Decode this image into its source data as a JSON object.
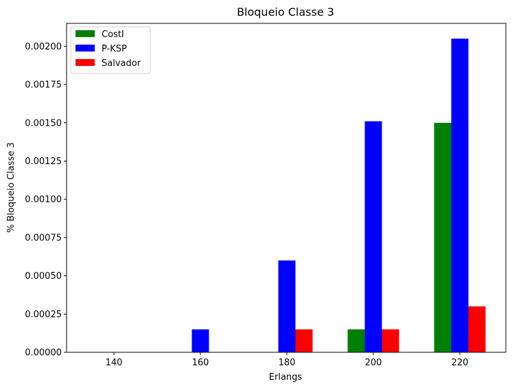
{
  "chart_data": {
    "type": "bar",
    "title": "Bloqueio Classe 3",
    "xlabel": "Erlangs",
    "ylabel": "% Bloqueio Classe 3",
    "categories": [
      "140",
      "160",
      "180",
      "200",
      "220"
    ],
    "series": [
      {
        "name": "CostI",
        "color": "#008000",
        "values": [
          0,
          0,
          0,
          0.00015,
          0.0015
        ]
      },
      {
        "name": "P-KSP",
        "color": "#0000ff",
        "values": [
          0,
          0.00015,
          0.0006,
          0.00151,
          0.00205
        ]
      },
      {
        "name": "Salvador",
        "color": "#ff0000",
        "values": [
          0,
          0,
          0.00015,
          0.00015,
          0.0003
        ]
      }
    ],
    "ylim": [
      0,
      0.00215
    ],
    "yticks": [
      "0.00000",
      "0.00025",
      "0.00050",
      "0.00075",
      "0.00100",
      "0.00125",
      "0.00150",
      "0.00175",
      "0.00200"
    ],
    "ytick_values": [
      0,
      0.00025,
      0.0005,
      0.00075,
      0.001,
      0.00125,
      0.0015,
      0.00175,
      0.002
    ],
    "legend": "top-left",
    "grid": false
  }
}
